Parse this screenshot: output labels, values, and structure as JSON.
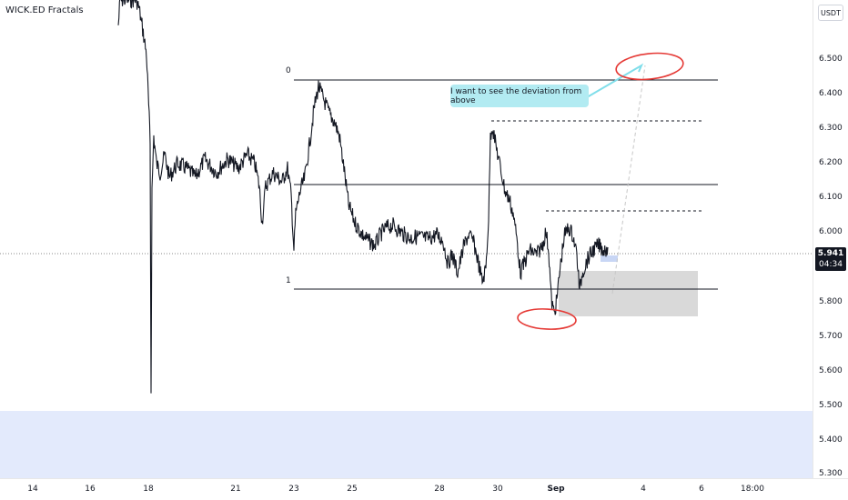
{
  "indicator": {
    "name": "WICK.ED Fractals"
  },
  "currency": "USDT",
  "last_price": {
    "price": "5.941",
    "countdown": "04:34"
  },
  "annotation": {
    "text": "I want to see the deviation from above"
  },
  "fib_levels": [
    {
      "label": "0",
      "price": 6.44
    },
    {
      "label": "1",
      "price": 5.84
    }
  ],
  "price_axis": [
    {
      "value": 6.5,
      "label": "6.500"
    },
    {
      "value": 6.4,
      "label": "6.400"
    },
    {
      "value": 6.3,
      "label": "6.300"
    },
    {
      "value": 6.2,
      "label": "6.200"
    },
    {
      "value": 6.1,
      "label": "6.100"
    },
    {
      "value": 6.0,
      "label": "6.000"
    },
    {
      "value": 5.8,
      "label": "5.800"
    },
    {
      "value": 5.7,
      "label": "5.700"
    },
    {
      "value": 5.6,
      "label": "5.600"
    },
    {
      "value": 5.5,
      "label": "5.500"
    },
    {
      "value": 5.4,
      "label": "5.400"
    },
    {
      "value": 5.3,
      "label": "5.300"
    }
  ],
  "time_axis": [
    {
      "label": "14",
      "bold": false
    },
    {
      "label": "16",
      "bold": false
    },
    {
      "label": "18",
      "bold": false
    },
    {
      "label": "21",
      "bold": false
    },
    {
      "label": "23",
      "bold": false
    },
    {
      "label": "25",
      "bold": false
    },
    {
      "label": "28",
      "bold": false
    },
    {
      "label": "30",
      "bold": false
    },
    {
      "label": "Sep",
      "bold": true
    },
    {
      "label": "4",
      "bold": false
    },
    {
      "label": "6",
      "bold": false
    },
    {
      "label": "18:00",
      "bold": false
    }
  ],
  "colors": {
    "candles": "#131722",
    "blue_zone": "#e3eafc",
    "gray_box": "#d9d9d9",
    "callout": "#b2ebf2",
    "callout_arrow": "#80deea",
    "red_marker": "#e53935",
    "projection": "#c7c7c7"
  }
}
